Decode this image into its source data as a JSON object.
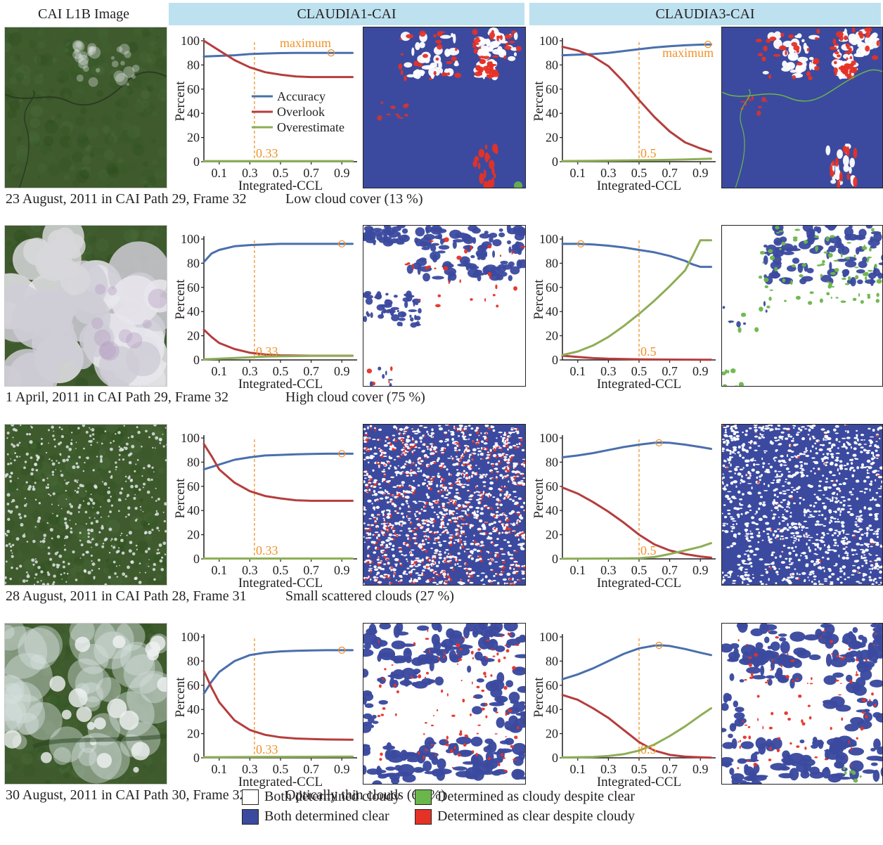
{
  "headers": {
    "l1b": "CAI L1B Image",
    "c1": "CLAUDIA1-CAI",
    "c3": "CLAUDIA3-CAI"
  },
  "colors": {
    "accuracy": "#4a6fad",
    "overlook": "#b63d3d",
    "overestimate": "#8dae55",
    "threshold": "#f0922b",
    "both_clear": "#3b4a9f",
    "both_cloudy": "#ffffff",
    "cloudy_despite_clear": "#6ab64a",
    "clear_despite_cloudy": "#e53226",
    "header_bg": "#bde1ef"
  },
  "rows": [
    {
      "caption_date": "23 August, 2011 in CAI Path 29, Frame 32",
      "caption_desc": "Low cloud cover (13 %)",
      "thumb_style": "forest",
      "map_c1": "low_c1",
      "map_c3": "low_c3"
    },
    {
      "caption_date": "1 April, 2011 in CAI Path 29, Frame 32",
      "caption_desc": "High cloud cover (75 %)",
      "thumb_style": "cloudy",
      "map_c1": "high_c1",
      "map_c3": "high_c3"
    },
    {
      "caption_date": "28 August, 2011 in CAI Path 28, Frame 31",
      "caption_desc": "Small scattered clouds (27 %)",
      "thumb_style": "scattered",
      "map_c1": "scat_c1",
      "map_c3": "scat_c3"
    },
    {
      "caption_date": "30 August, 2011 in CAI Path 30, Frame 32",
      "caption_desc": "Optically thin clouds (67 %)",
      "thumb_style": "thin",
      "map_c1": "thin_c1",
      "map_c3": "thin_c3"
    }
  ],
  "chart_data": [
    {
      "type": "line",
      "id": "r1c1",
      "xlabel": "Integrated-CCL",
      "ylabel": "Percent",
      "xlim": [
        0,
        1
      ],
      "ylim": [
        0,
        100
      ],
      "xticks": [
        "0.1",
        "0.3",
        "0.5",
        "0.7",
        "0.9"
      ],
      "yticks": [
        "0",
        "20",
        "40",
        "60",
        "80",
        "100"
      ],
      "threshold": 0.33,
      "threshold_label": "0.33",
      "maximum": {
        "x": 0.83,
        "y": 90,
        "label": "maximum"
      },
      "legend": [
        "Accuracy",
        "Overlook",
        "Overestimate"
      ],
      "series": [
        {
          "name": "Accuracy",
          "x": [
            0,
            0.1,
            0.2,
            0.3,
            0.4,
            0.5,
            0.6,
            0.7,
            0.8,
            0.9,
            0.97
          ],
          "y": [
            87,
            87.5,
            88,
            89,
            89.5,
            89.8,
            90,
            90,
            90,
            90,
            90
          ]
        },
        {
          "name": "Overlook",
          "x": [
            0,
            0.1,
            0.2,
            0.3,
            0.4,
            0.5,
            0.6,
            0.7,
            0.8,
            0.9,
            0.97
          ],
          "y": [
            100,
            92,
            84,
            78,
            74,
            72,
            70.5,
            70,
            70,
            70,
            70
          ]
        },
        {
          "name": "Overestimate",
          "x": [
            0,
            0.5,
            0.97
          ],
          "y": [
            0.5,
            0.5,
            0.5
          ]
        }
      ]
    },
    {
      "type": "line",
      "id": "r1c3",
      "xlabel": "Integrated-CCL",
      "ylabel": "Percent",
      "xlim": [
        0,
        1
      ],
      "ylim": [
        0,
        100
      ],
      "xticks": [
        "0.1",
        "0.3",
        "0.5",
        "0.7",
        "0.9"
      ],
      "yticks": [
        "0",
        "20",
        "40",
        "60",
        "80",
        "100"
      ],
      "threshold": 0.5,
      "threshold_label": "0.5",
      "maximum": {
        "x": 0.95,
        "y": 97,
        "label": "maximum"
      },
      "series": [
        {
          "name": "Accuracy",
          "x": [
            0,
            0.1,
            0.2,
            0.3,
            0.4,
            0.5,
            0.6,
            0.7,
            0.8,
            0.9,
            0.97
          ],
          "y": [
            88,
            88.5,
            89,
            90,
            91.5,
            93,
            94.5,
            95.5,
            96.3,
            96.8,
            97
          ]
        },
        {
          "name": "Overlook",
          "x": [
            0,
            0.1,
            0.2,
            0.3,
            0.4,
            0.5,
            0.6,
            0.7,
            0.8,
            0.9,
            0.97
          ],
          "y": [
            95,
            92,
            87,
            79,
            66,
            51,
            37,
            25,
            16,
            11,
            8
          ]
        },
        {
          "name": "Overestimate",
          "x": [
            0,
            0.2,
            0.4,
            0.6,
            0.8,
            0.97
          ],
          "y": [
            0.5,
            0.7,
            1,
            1.3,
            1.8,
            2.5
          ]
        }
      ]
    },
    {
      "type": "line",
      "id": "r2c1",
      "xlabel": "Integrated-CCL",
      "ylabel": "Percent",
      "xlim": [
        0,
        1
      ],
      "ylim": [
        0,
        100
      ],
      "xticks": [
        "0.1",
        "0.3",
        "0.5",
        "0.7",
        "0.9"
      ],
      "yticks": [
        "0",
        "20",
        "40",
        "60",
        "80",
        "100"
      ],
      "threshold": 0.33,
      "threshold_label": "0.33",
      "maximum": {
        "x": 0.9,
        "y": 96
      },
      "series": [
        {
          "name": "Accuracy",
          "x": [
            0,
            0.05,
            0.1,
            0.2,
            0.3,
            0.4,
            0.5,
            0.7,
            0.9,
            0.97
          ],
          "y": [
            81,
            88,
            91,
            94,
            95,
            95.5,
            96,
            96,
            96,
            96
          ]
        },
        {
          "name": "Overlook",
          "x": [
            0,
            0.05,
            0.1,
            0.2,
            0.3,
            0.4,
            0.5,
            0.7,
            0.9,
            0.97
          ],
          "y": [
            25,
            19,
            14,
            9,
            6,
            4.5,
            3.8,
            3.5,
            3.5,
            3.5
          ]
        },
        {
          "name": "Overestimate",
          "x": [
            0,
            0.1,
            0.2,
            0.3,
            0.4,
            0.5,
            0.7,
            0.97
          ],
          "y": [
            0.5,
            1,
            1.6,
            2.2,
            2.8,
            3.1,
            3.3,
            3.4
          ]
        }
      ]
    },
    {
      "type": "line",
      "id": "r2c3",
      "xlabel": "Integrated-CCL",
      "ylabel": "Percent",
      "xlim": [
        0,
        1
      ],
      "ylim": [
        0,
        100
      ],
      "xticks": [
        "0.1",
        "0.3",
        "0.5",
        "0.7",
        "0.9"
      ],
      "yticks": [
        "0",
        "20",
        "40",
        "60",
        "80",
        "100"
      ],
      "threshold": 0.5,
      "threshold_label": "0.5",
      "maximum": {
        "x": 0.12,
        "y": 96
      },
      "series": [
        {
          "name": "Accuracy",
          "x": [
            0,
            0.1,
            0.2,
            0.3,
            0.4,
            0.5,
            0.6,
            0.7,
            0.8,
            0.85,
            0.9,
            0.97
          ],
          "y": [
            96,
            96,
            95.5,
            94.5,
            93,
            91,
            89,
            86,
            82,
            79,
            77,
            77
          ]
        },
        {
          "name": "Overlook",
          "x": [
            0,
            0.1,
            0.2,
            0.3,
            0.5,
            0.7,
            0.97
          ],
          "y": [
            3.5,
            2.5,
            1.5,
            1,
            0.5,
            0.3,
            0.2
          ]
        },
        {
          "name": "Overestimate",
          "x": [
            0,
            0.1,
            0.2,
            0.3,
            0.4,
            0.5,
            0.6,
            0.7,
            0.8,
            0.85,
            0.9,
            0.97
          ],
          "y": [
            4,
            7,
            12,
            19,
            28,
            38,
            49,
            61,
            74,
            86,
            99,
            99
          ]
        }
      ]
    },
    {
      "type": "line",
      "id": "r3c1",
      "xlabel": "Integrated-CCL",
      "ylabel": "Percent",
      "xlim": [
        0,
        1
      ],
      "ylim": [
        0,
        100
      ],
      "xticks": [
        "0.1",
        "0.3",
        "0.5",
        "0.7",
        "0.9"
      ],
      "yticks": [
        "0",
        "20",
        "40",
        "60",
        "80",
        "100"
      ],
      "threshold": 0.33,
      "threshold_label": "0.33",
      "maximum": {
        "x": 0.9,
        "y": 87
      },
      "series": [
        {
          "name": "Accuracy",
          "x": [
            0,
            0.1,
            0.2,
            0.3,
            0.4,
            0.5,
            0.6,
            0.7,
            0.8,
            0.9,
            0.97
          ],
          "y": [
            74,
            78,
            82,
            84,
            85.5,
            86,
            86.5,
            86.8,
            87,
            87,
            87
          ]
        },
        {
          "name": "Overlook",
          "x": [
            0,
            0.05,
            0.1,
            0.2,
            0.3,
            0.4,
            0.5,
            0.6,
            0.7,
            0.8,
            0.97
          ],
          "y": [
            95,
            85,
            74,
            63,
            56,
            52,
            50,
            48.5,
            48,
            48,
            48
          ]
        },
        {
          "name": "Overestimate",
          "x": [
            0,
            0.5,
            0.97
          ],
          "y": [
            0.3,
            0.3,
            0.3
          ]
        }
      ]
    },
    {
      "type": "line",
      "id": "r3c3",
      "xlabel": "Integrated-CCL",
      "ylabel": "Percent",
      "xlim": [
        0,
        1
      ],
      "ylim": [
        0,
        100
      ],
      "xticks": [
        "0.1",
        "0.3",
        "0.5",
        "0.7",
        "0.9"
      ],
      "yticks": [
        "0",
        "20",
        "40",
        "60",
        "80",
        "100"
      ],
      "threshold": 0.5,
      "threshold_label": "0.5",
      "maximum": {
        "x": 0.63,
        "y": 96
      },
      "series": [
        {
          "name": "Accuracy",
          "x": [
            0,
            0.1,
            0.2,
            0.3,
            0.4,
            0.5,
            0.6,
            0.65,
            0.7,
            0.8,
            0.9,
            0.97
          ],
          "y": [
            84,
            85.5,
            87.5,
            90,
            92.5,
            94.5,
            96,
            96.2,
            96,
            94.5,
            92.5,
            91
          ]
        },
        {
          "name": "Overlook",
          "x": [
            0,
            0.1,
            0.2,
            0.3,
            0.4,
            0.5,
            0.6,
            0.7,
            0.8,
            0.9,
            0.97
          ],
          "y": [
            59,
            54,
            47,
            39,
            30,
            20,
            12,
            7,
            4,
            2,
            1
          ]
        },
        {
          "name": "Overestimate",
          "x": [
            0,
            0.3,
            0.5,
            0.6,
            0.7,
            0.8,
            0.9,
            0.97
          ],
          "y": [
            0.2,
            0.3,
            0.6,
            1.5,
            4,
            7,
            10,
            13
          ]
        }
      ]
    },
    {
      "type": "line",
      "id": "r4c1",
      "xlabel": "Integrated-CCL",
      "ylabel": "Percent",
      "xlim": [
        0,
        1
      ],
      "ylim": [
        0,
        100
      ],
      "xticks": [
        "0.1",
        "0.3",
        "0.5",
        "0.7",
        "0.9"
      ],
      "yticks": [
        "0",
        "20",
        "40",
        "60",
        "80",
        "100"
      ],
      "threshold": 0.33,
      "threshold_label": "0.33",
      "maximum": {
        "x": 0.9,
        "y": 89
      },
      "series": [
        {
          "name": "Accuracy",
          "x": [
            0,
            0.05,
            0.1,
            0.2,
            0.3,
            0.4,
            0.5,
            0.6,
            0.7,
            0.8,
            0.9,
            0.97
          ],
          "y": [
            53,
            63,
            71,
            80,
            85,
            87,
            88,
            88.5,
            88.8,
            89,
            89,
            89
          ]
        },
        {
          "name": "Overlook",
          "x": [
            0,
            0.05,
            0.1,
            0.2,
            0.3,
            0.4,
            0.5,
            0.6,
            0.7,
            0.8,
            0.97
          ],
          "y": [
            72,
            58,
            46,
            31,
            23,
            19,
            17,
            16,
            15.5,
            15.2,
            15
          ]
        },
        {
          "name": "Overestimate",
          "x": [
            0,
            0.5,
            0.97
          ],
          "y": [
            0.5,
            0.8,
            1
          ]
        }
      ]
    },
    {
      "type": "line",
      "id": "r4c3",
      "xlabel": "Integrated-CCL",
      "ylabel": "Percent",
      "xlim": [
        0,
        1
      ],
      "ylim": [
        0,
        100
      ],
      "xticks": [
        "0.1",
        "0.3",
        "0.5",
        "0.7",
        "0.9"
      ],
      "yticks": [
        "0",
        "20",
        "40",
        "60",
        "80",
        "100"
      ],
      "threshold": 0.5,
      "threshold_label": "0.5",
      "maximum": {
        "x": 0.63,
        "y": 93
      },
      "series": [
        {
          "name": "Accuracy",
          "x": [
            0,
            0.1,
            0.2,
            0.3,
            0.4,
            0.5,
            0.6,
            0.65,
            0.7,
            0.8,
            0.9,
            0.97
          ],
          "y": [
            65,
            69,
            74,
            80,
            86,
            90.5,
            92.8,
            93,
            92.5,
            90,
            87,
            85
          ]
        },
        {
          "name": "Overlook",
          "x": [
            0,
            0.1,
            0.2,
            0.3,
            0.4,
            0.5,
            0.6,
            0.7,
            0.8,
            0.9,
            0.97
          ],
          "y": [
            52,
            48,
            41,
            33,
            23,
            13,
            6,
            2.5,
            1,
            0.4,
            0.2
          ]
        },
        {
          "name": "Overestimate",
          "x": [
            0,
            0.2,
            0.3,
            0.4,
            0.5,
            0.6,
            0.7,
            0.8,
            0.9,
            0.97
          ],
          "y": [
            0.3,
            0.7,
            1.5,
            3,
            6,
            11,
            18,
            26,
            35,
            41
          ]
        }
      ]
    }
  ],
  "legend": {
    "both_cloudy": "Both determined cloudy",
    "both_clear": "Both determined clear",
    "cloudy_despite_clear": "Determined as cloudy despite clear",
    "clear_despite_cloudy": "Determined as clear despite cloudy"
  }
}
